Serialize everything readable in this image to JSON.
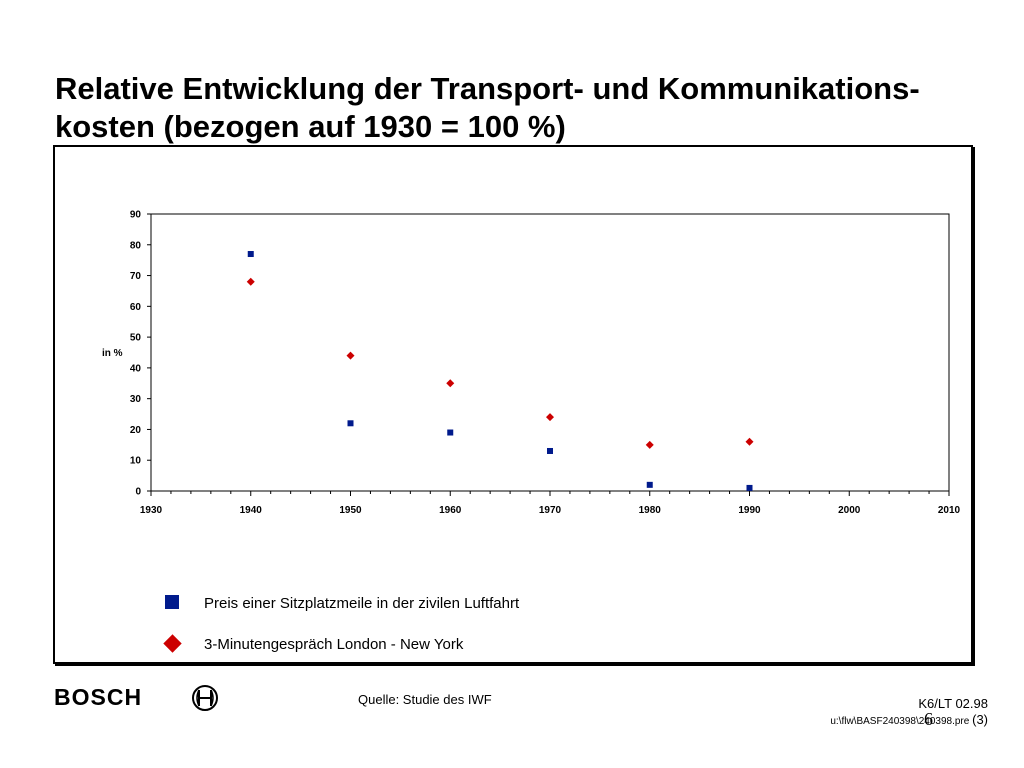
{
  "header": {
    "title_line1": "Relative Entwicklung der Transport- und Kommunikations-",
    "title_line2": "kosten (bezogen auf 1930 = 100 %)"
  },
  "chart_data": {
    "type": "scatter",
    "ylabel": "in %",
    "xlim": [
      1930,
      2010
    ],
    "ylim": [
      0,
      90
    ],
    "x_ticks": [
      1930,
      1940,
      1950,
      1960,
      1970,
      1980,
      1990,
      2000,
      2010
    ],
    "y_ticks": [
      0,
      10,
      20,
      30,
      40,
      50,
      60,
      70,
      80,
      90
    ],
    "grid": false,
    "legend_placement": "bottom-left",
    "series": [
      {
        "name": "Preis einer Sitzplatzmeile in der zivilen Luftfahrt",
        "marker": "square",
        "color": "#001a8c",
        "x": [
          1940,
          1950,
          1960,
          1970,
          1980,
          1990
        ],
        "y": [
          77,
          22,
          19,
          13,
          2,
          1
        ]
      },
      {
        "name": "3-Minutengespräch London - New York",
        "marker": "diamond",
        "color": "#cc0000",
        "x": [
          1940,
          1950,
          1960,
          1970,
          1980,
          1990
        ],
        "y": [
          68,
          44,
          35,
          24,
          15,
          16
        ]
      }
    ]
  },
  "footer": {
    "logo": "BOSCH",
    "source": "Quelle: Studie des IWF",
    "doc_ref": "K6/LT 02.98",
    "file_path": "u:\\flw\\BASF240398\\240398.pre",
    "page_ref": "(3)",
    "page_number": "6"
  }
}
